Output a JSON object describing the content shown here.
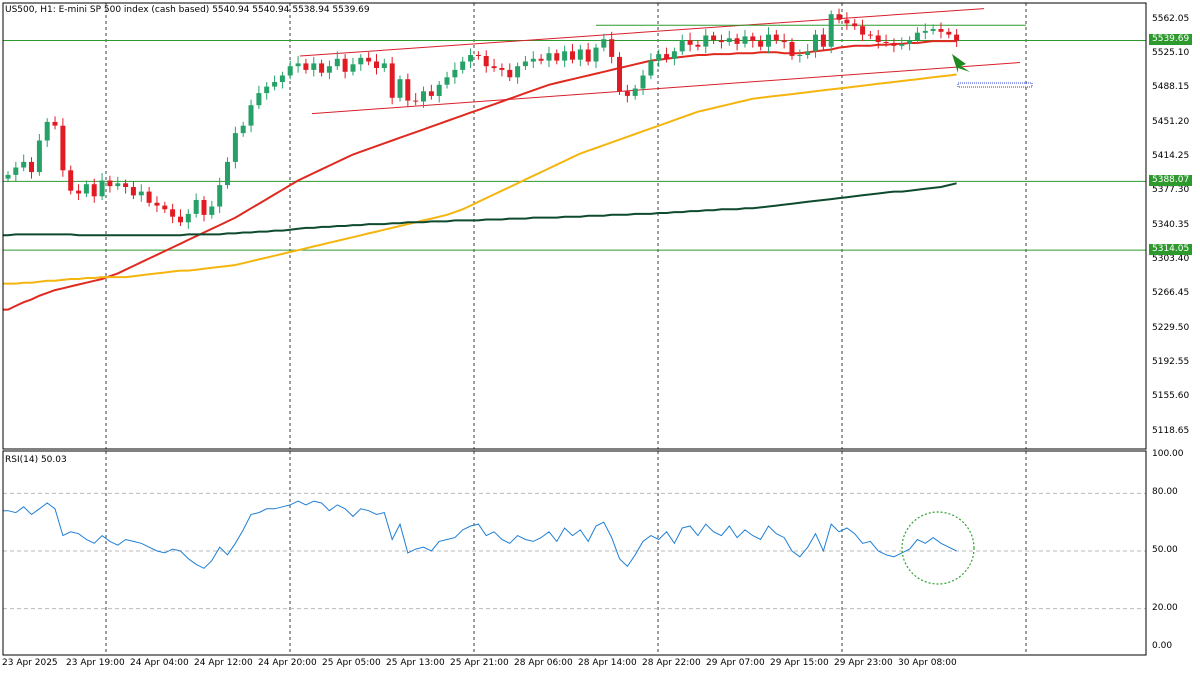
{
  "header": {
    "symbol": "US500, H1:",
    "description": "E-mini SP 500 index (cash based)",
    "ohlc": "5540.94 5540.94 5538.94 5539.69"
  },
  "rsi_header": "RSI(14) 50.03",
  "colors": {
    "bull": "#26a269",
    "bear": "#e01b24",
    "ma_fast": "#e0291f",
    "ma_mid": "#f5b50f",
    "ma_slow": "#0d4a2e",
    "channel": "#d81f2a",
    "level_line": "#2e9a2e",
    "rsi_line": "#1f7fd6",
    "grid": "#7f7f7f"
  },
  "chart_data": [
    {
      "type": "candlestick",
      "title": "US500, H1: E-mini SP 500 index (cash based)",
      "last_price": "5539.69",
      "ylim": [
        5100,
        5580
      ],
      "y_ticks": [
        "5562.05",
        "5525.10",
        "5488.15",
        "5451.20",
        "5414.25",
        "5377.30",
        "5340.35",
        "5303.40",
        "5266.45",
        "5229.50",
        "5192.55",
        "5155.60",
        "5118.65"
      ],
      "x_ticks": [
        "23 Apr 2025",
        "23 Apr 19:00",
        "24 Apr 04:00",
        "24 Apr 12:00",
        "24 Apr 20:00",
        "25 Apr 05:00",
        "25 Apr 13:00",
        "25 Apr 21:00",
        "28 Apr 06:00",
        "28 Apr 14:00",
        "28 Apr 22:00",
        "29 Apr 07:00",
        "29 Apr 15:00",
        "29 Apr 23:00",
        "30 Apr 08:00"
      ],
      "levels": [
        {
          "label": "5539.69",
          "value": 5539.69,
          "kind": "price"
        },
        {
          "label": "5388.07",
          "value": 5388.07,
          "kind": "level"
        },
        {
          "label": "5314.05",
          "value": 5314.05,
          "kind": "level"
        }
      ],
      "close": [
        5395,
        5403,
        5409,
        5398,
        5432,
        5452,
        5448,
        5400,
        5378,
        5375,
        5385,
        5372,
        5389,
        5383,
        5386,
        5382,
        5373,
        5377,
        5365,
        5362,
        5358,
        5350,
        5344,
        5353,
        5368,
        5352,
        5361,
        5384,
        5409,
        5440,
        5448,
        5470,
        5483,
        5490,
        5495,
        5502,
        5512,
        5515,
        5508,
        5515,
        5505,
        5512,
        5520,
        5506,
        5514,
        5521,
        5517,
        5510,
        5515,
        5478,
        5498,
        5475,
        5474,
        5485,
        5480,
        5492,
        5500,
        5508,
        5517,
        5524,
        5523,
        5512,
        5510,
        5508,
        5500,
        5512,
        5517,
        5520,
        5518,
        5526,
        5518,
        5528,
        5519,
        5530,
        5517,
        5532,
        5541,
        5522,
        5485,
        5480,
        5488,
        5502,
        5518,
        5525,
        5520,
        5528,
        5540,
        5535,
        5533,
        5545,
        5540,
        5538,
        5542,
        5536,
        5544,
        5539,
        5533,
        5546,
        5540,
        5538,
        5523,
        5524,
        5528,
        5546,
        5533,
        5568,
        5562,
        5558,
        5555,
        5546,
        5545,
        5538,
        5537,
        5534,
        5536,
        5540,
        5548,
        5550,
        5552,
        5549,
        5546,
        5539.69
      ],
      "series": [
        {
          "name": "MA fast",
          "values": [
            5250,
            5254,
            5258,
            5261,
            5265,
            5268,
            5271,
            5273,
            5275,
            5277,
            5279,
            5281,
            5283,
            5286,
            5289,
            5293,
            5297,
            5301,
            5305,
            5309,
            5313,
            5317,
            5321,
            5325,
            5329,
            5333,
            5337,
            5341,
            5345,
            5349,
            5354,
            5359,
            5364,
            5369,
            5374,
            5379,
            5384,
            5389,
            5393,
            5397,
            5401,
            5405,
            5409,
            5413,
            5417,
            5420,
            5423,
            5426,
            5429,
            5432,
            5435,
            5438,
            5441,
            5444,
            5447,
            5450,
            5453,
            5456,
            5459,
            5462,
            5465,
            5468,
            5471,
            5474,
            5477,
            5480,
            5483,
            5486,
            5489,
            5492,
            5494,
            5496,
            5498,
            5500,
            5502,
            5504,
            5506,
            5508,
            5510,
            5512,
            5514,
            5516,
            5518,
            5519,
            5520,
            5521,
            5522,
            5523,
            5524,
            5524,
            5525,
            5525,
            5525,
            5526,
            5526,
            5526,
            5527,
            5527,
            5527,
            5526,
            5526,
            5526,
            5527,
            5528,
            5529,
            5530,
            5532,
            5533,
            5534,
            5534,
            5534,
            5535,
            5535,
            5536,
            5536,
            5537,
            5537,
            5538,
            5539,
            5539,
            5539,
            5539
          ]
        },
        {
          "name": "MA mid",
          "values": [
            5278,
            5278,
            5279,
            5279,
            5280,
            5281,
            5281,
            5282,
            5283,
            5283,
            5284,
            5284,
            5285,
            5285,
            5285,
            5285,
            5286,
            5287,
            5288,
            5289,
            5290,
            5291,
            5292,
            5292,
            5293,
            5294,
            5295,
            5296,
            5297,
            5298,
            5300,
            5302,
            5304,
            5306,
            5308,
            5310,
            5312,
            5314,
            5316,
            5318,
            5320,
            5322,
            5324,
            5326,
            5328,
            5330,
            5332,
            5334,
            5336,
            5338,
            5340,
            5342,
            5344,
            5346,
            5348,
            5350,
            5352,
            5355,
            5358,
            5362,
            5366,
            5370,
            5374,
            5378,
            5382,
            5386,
            5390,
            5394,
            5398,
            5402,
            5406,
            5410,
            5414,
            5418,
            5421,
            5424,
            5427,
            5430,
            5433,
            5436,
            5439,
            5442,
            5445,
            5448,
            5451,
            5454,
            5457,
            5460,
            5463,
            5465,
            5467,
            5469,
            5471,
            5473,
            5475,
            5477,
            5478,
            5479,
            5480,
            5481,
            5482,
            5483,
            5484,
            5485,
            5486,
            5487,
            5488,
            5489,
            5490,
            5491,
            5492,
            5493,
            5494,
            5495,
            5496,
            5497,
            5498,
            5499,
            5500,
            5501,
            5502,
            5503
          ]
        },
        {
          "name": "MA slow",
          "values": [
            5330,
            5331,
            5331,
            5331,
            5331,
            5331,
            5331,
            5331,
            5331,
            5330,
            5330,
            5330,
            5330,
            5330,
            5330,
            5330,
            5330,
            5330,
            5330,
            5330,
            5330,
            5330,
            5330,
            5331,
            5331,
            5331,
            5331,
            5331,
            5332,
            5332,
            5333,
            5333,
            5334,
            5334,
            5335,
            5335,
            5336,
            5337,
            5338,
            5338,
            5339,
            5339,
            5340,
            5340,
            5341,
            5341,
            5342,
            5342,
            5342,
            5343,
            5343,
            5344,
            5344,
            5344,
            5345,
            5345,
            5345,
            5346,
            5346,
            5346,
            5346,
            5347,
            5347,
            5347,
            5348,
            5348,
            5348,
            5349,
            5349,
            5349,
            5349,
            5350,
            5350,
            5350,
            5351,
            5351,
            5351,
            5352,
            5352,
            5352,
            5353,
            5353,
            5353,
            5354,
            5354,
            5355,
            5355,
            5356,
            5356,
            5357,
            5357,
            5358,
            5358,
            5358,
            5359,
            5359,
            5360,
            5361,
            5362,
            5363,
            5364,
            5365,
            5366,
            5367,
            5368,
            5369,
            5370,
            5371,
            5372,
            5373,
            5374,
            5375,
            5376,
            5377,
            5377,
            5378,
            5379,
            5380,
            5381,
            5382,
            5384,
            5386
          ]
        }
      ],
      "channel": {
        "upper": [
          [
            0.25,
            5523
          ],
          [
            0.82,
            5574
          ]
        ],
        "lower": [
          [
            0.26,
            5461
          ],
          [
            0.85,
            5516
          ]
        ]
      }
    },
    {
      "type": "line",
      "title": "RSI(14) 50.03",
      "ylim": [
        0,
        100
      ],
      "y_ticks": [
        "100.00",
        "80.00",
        "50.00",
        "20.00",
        "0.00"
      ],
      "levels": [
        80,
        50,
        20
      ],
      "series": [
        {
          "name": "RSI(14)",
          "values": [
            71,
            70,
            73,
            69,
            72,
            75,
            72,
            58,
            60,
            59,
            56,
            54,
            58,
            55,
            53,
            56,
            55,
            54,
            52,
            50,
            49,
            51,
            50,
            46,
            43,
            41,
            45,
            52,
            48,
            54,
            61,
            69,
            70,
            72,
            72,
            73,
            74,
            76,
            74,
            76,
            75,
            71,
            74,
            72,
            68,
            72,
            71,
            69,
            70,
            56,
            64,
            49,
            51,
            52,
            50,
            55,
            56,
            57,
            61,
            63,
            64,
            58,
            60,
            56,
            54,
            58,
            56,
            55,
            57,
            60,
            55,
            62,
            58,
            61,
            55,
            63,
            65,
            57,
            46,
            42,
            48,
            55,
            58,
            56,
            60,
            54,
            62,
            63,
            58,
            64,
            60,
            58,
            63,
            57,
            61,
            58,
            56,
            63,
            59,
            57,
            50,
            47,
            52,
            59,
            50,
            64,
            60,
            62,
            59,
            54,
            55,
            50,
            48,
            47,
            49,
            51,
            56,
            54,
            57,
            54,
            52,
            50
          ]
        }
      ]
    }
  ]
}
